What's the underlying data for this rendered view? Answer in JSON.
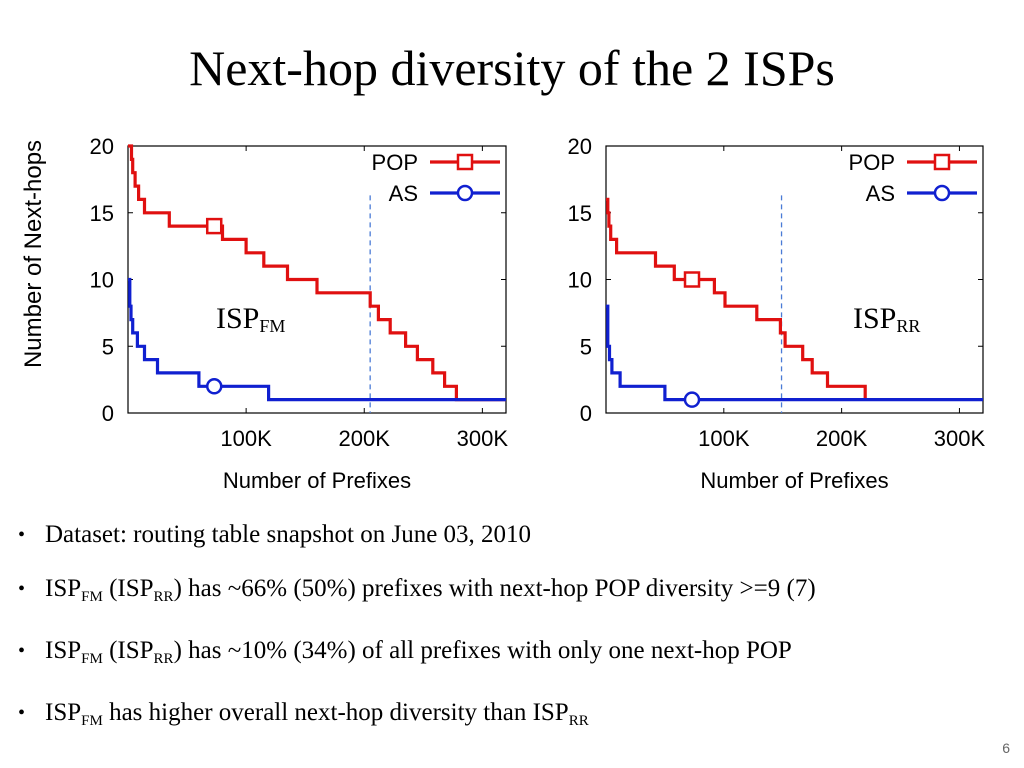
{
  "slide": {
    "title": "Next-hop diversity of the 2 ISPs",
    "page_number": "6"
  },
  "bullets": [
    {
      "parts": [
        {
          "t": "Dataset: routing table snapshot on June 03, 2010"
        }
      ]
    },
    {
      "parts": [
        {
          "t": "ISP"
        },
        {
          "sub": "FM"
        },
        {
          "t": " (ISP"
        },
        {
          "sub": "RR"
        },
        {
          "t": ") has ~66% (50%) prefixes with next-hop POP diversity >=9 (7)"
        }
      ]
    },
    {
      "parts": [
        {
          "t": "ISP"
        },
        {
          "sub": "FM"
        },
        {
          "t": " (ISP"
        },
        {
          "sub": "RR"
        },
        {
          "t": ")  has ~10% (34%) of all prefixes with only one next-hop POP"
        }
      ]
    },
    {
      "parts": [
        {
          "t": "ISP"
        },
        {
          "sub": "FM"
        },
        {
          "t": " has higher overall next-hop diversity than ISP"
        },
        {
          "sub": "RR"
        }
      ]
    }
  ],
  "chart_data": [
    {
      "type": "line",
      "title": "",
      "isp_label": {
        "main": "ISP",
        "sub": "FM"
      },
      "xlabel": "Number of Prefixes",
      "ylabel": "Number of Next-hops",
      "xlim": [
        0,
        320000
      ],
      "ylim": [
        0,
        20
      ],
      "xticks": [
        100000,
        200000,
        300000
      ],
      "xtick_labels": [
        "100K",
        "200K",
        "300K"
      ],
      "yticks": [
        0,
        5,
        10,
        15,
        20
      ],
      "ytick_labels": [
        "0",
        "5",
        "10",
        "15",
        "20"
      ],
      "legend_position": "top-right",
      "vline_x": 205000,
      "series": [
        {
          "name": "POP",
          "color": "#e01010",
          "marker": "square",
          "marker_point": [
            73000,
            14
          ],
          "points": [
            [
              0,
              20
            ],
            [
              3000,
              20
            ],
            [
              3000,
              19
            ],
            [
              4000,
              19
            ],
            [
              4000,
              18
            ],
            [
              6000,
              18
            ],
            [
              6000,
              17
            ],
            [
              9000,
              17
            ],
            [
              9000,
              16
            ],
            [
              14000,
              16
            ],
            [
              14000,
              15
            ],
            [
              35000,
              15
            ],
            [
              35000,
              14
            ],
            [
              80000,
              14
            ],
            [
              80000,
              13
            ],
            [
              100000,
              13
            ],
            [
              100000,
              12
            ],
            [
              115000,
              12
            ],
            [
              115000,
              11
            ],
            [
              135000,
              11
            ],
            [
              135000,
              10
            ],
            [
              160000,
              10
            ],
            [
              160000,
              9
            ],
            [
              205000,
              9
            ],
            [
              205000,
              8
            ],
            [
              212000,
              8
            ],
            [
              212000,
              7
            ],
            [
              222000,
              7
            ],
            [
              222000,
              6
            ],
            [
              235000,
              6
            ],
            [
              235000,
              5
            ],
            [
              245000,
              5
            ],
            [
              245000,
              4
            ],
            [
              258000,
              4
            ],
            [
              258000,
              3
            ],
            [
              268000,
              3
            ],
            [
              268000,
              2
            ],
            [
              278000,
              2
            ],
            [
              278000,
              1
            ],
            [
              320000,
              1
            ]
          ]
        },
        {
          "name": "AS",
          "color": "#1020d0",
          "marker": "circle",
          "marker_point": [
            73000,
            2
          ],
          "points": [
            [
              0,
              10
            ],
            [
              1500,
              10
            ],
            [
              1500,
              8
            ],
            [
              2500,
              8
            ],
            [
              2500,
              7
            ],
            [
              4000,
              7
            ],
            [
              4000,
              6
            ],
            [
              8000,
              6
            ],
            [
              8000,
              5
            ],
            [
              14000,
              5
            ],
            [
              14000,
              4
            ],
            [
              25000,
              4
            ],
            [
              25000,
              3
            ],
            [
              60000,
              3
            ],
            [
              60000,
              2
            ],
            [
              119000,
              2
            ],
            [
              119000,
              1
            ],
            [
              320000,
              1
            ]
          ]
        }
      ]
    },
    {
      "type": "line",
      "title": "",
      "isp_label": {
        "main": "ISP",
        "sub": "RR"
      },
      "xlabel": "Number of Prefixes",
      "ylabel": "",
      "xlim": [
        0,
        320000
      ],
      "ylim": [
        0,
        20
      ],
      "xticks": [
        100000,
        200000,
        300000
      ],
      "xtick_labels": [
        "100K",
        "200K",
        "300K"
      ],
      "yticks": [
        0,
        5,
        10,
        15,
        20
      ],
      "ytick_labels": [
        "0",
        "5",
        "10",
        "15",
        "20"
      ],
      "legend_position": "top-right",
      "vline_x": 149000,
      "series": [
        {
          "name": "POP",
          "color": "#e01010",
          "marker": "square",
          "marker_point": [
            73000,
            10
          ],
          "points": [
            [
              0,
              16
            ],
            [
              1500,
              16
            ],
            [
              1500,
              15
            ],
            [
              2500,
              15
            ],
            [
              2500,
              14
            ],
            [
              4000,
              14
            ],
            [
              4000,
              13
            ],
            [
              9000,
              13
            ],
            [
              9000,
              12
            ],
            [
              42000,
              12
            ],
            [
              42000,
              11
            ],
            [
              58000,
              11
            ],
            [
              58000,
              10
            ],
            [
              92000,
              10
            ],
            [
              92000,
              9
            ],
            [
              101000,
              9
            ],
            [
              101000,
              8
            ],
            [
              128000,
              8
            ],
            [
              128000,
              7
            ],
            [
              148000,
              7
            ],
            [
              148000,
              6
            ],
            [
              152000,
              6
            ],
            [
              152000,
              5
            ],
            [
              167000,
              5
            ],
            [
              167000,
              4
            ],
            [
              175000,
              4
            ],
            [
              175000,
              3
            ],
            [
              188000,
              3
            ],
            [
              188000,
              2
            ],
            [
              220000,
              2
            ],
            [
              220000,
              1
            ]
          ]
        },
        {
          "name": "AS",
          "color": "#1020d0",
          "marker": "circle",
          "marker_point": [
            73000,
            1
          ],
          "points": [
            [
              0,
              8
            ],
            [
              1500,
              8
            ],
            [
              1500,
              5
            ],
            [
              3000,
              5
            ],
            [
              3000,
              4
            ],
            [
              5000,
              4
            ],
            [
              5000,
              3
            ],
            [
              12000,
              3
            ],
            [
              12000,
              2
            ],
            [
              50000,
              2
            ],
            [
              50000,
              1
            ],
            [
              320000,
              1
            ]
          ]
        }
      ]
    }
  ]
}
